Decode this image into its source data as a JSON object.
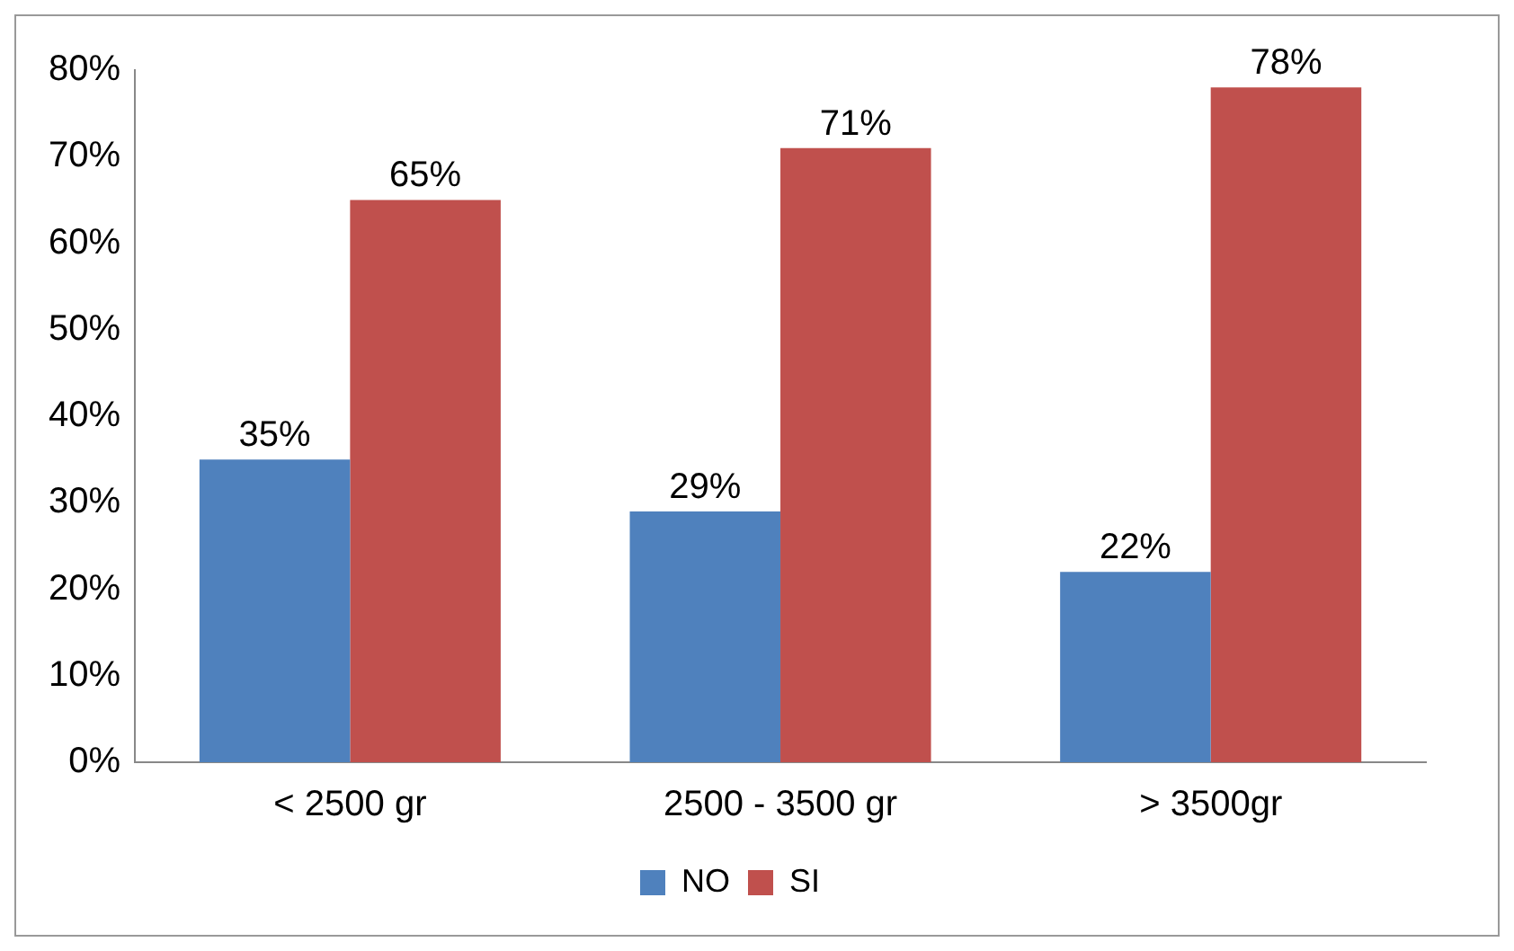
{
  "chart_data": {
    "type": "bar",
    "categories": [
      "< 2500 gr",
      "2500 - 3500 gr",
      "> 3500gr"
    ],
    "series": [
      {
        "name": "NO",
        "color": "#4f81bd",
        "values": [
          35,
          29,
          22
        ],
        "value_labels": [
          "35%",
          "29%",
          "22%"
        ]
      },
      {
        "name": "SI",
        "color": "#c0504d",
        "values": [
          65,
          71,
          78
        ],
        "value_labels": [
          "65%",
          "71%",
          "78%"
        ]
      }
    ],
    "ylim": [
      0,
      80
    ],
    "yticks": [
      {
        "value": 0,
        "label": "0%"
      },
      {
        "value": 10,
        "label": "10%"
      },
      {
        "value": 20,
        "label": "20%"
      },
      {
        "value": 30,
        "label": "30%"
      },
      {
        "value": 40,
        "label": "40%"
      },
      {
        "value": 50,
        "label": "50%"
      },
      {
        "value": 60,
        "label": "60%"
      },
      {
        "value": 70,
        "label": "70%"
      },
      {
        "value": 80,
        "label": "80%"
      }
    ],
    "grid": false,
    "legend": "bottom"
  }
}
